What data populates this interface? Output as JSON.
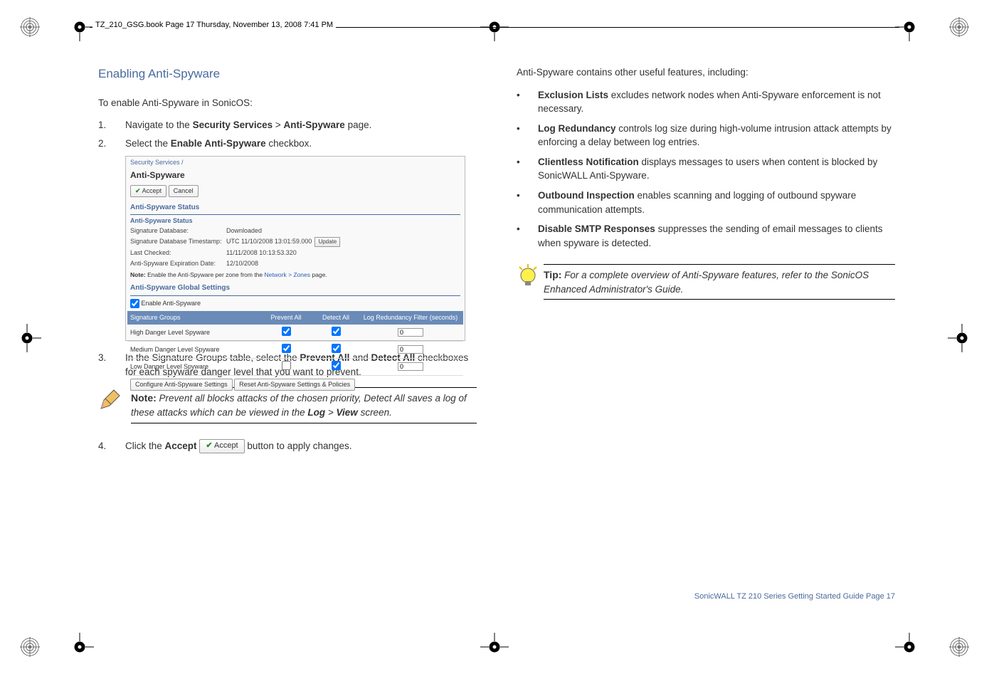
{
  "header": "TZ_210_GSG.book  Page 17  Thursday, November 13, 2008  7:41 PM",
  "left": {
    "title": "Enabling Anti-Spyware",
    "intro": "To enable Anti-Spyware in SonicOS:",
    "step1_pre": "Navigate to the ",
    "step1_b1": "Security Services",
    "step1_gt": " > ",
    "step1_b2": "Anti-Spyware",
    "step1_post": " page.",
    "step2_pre": "Select the ",
    "step2_b": "Enable Anti-Spyware",
    "step2_post": " checkbox.",
    "step3_pre": "In the Signature Groups table, select the ",
    "step3_b1": "Prevent All",
    "step3_mid": " and ",
    "step3_b2": "Detect All",
    "step3_post": " checkboxes for each spyware danger level that you want to prevent.",
    "note_label": "Note:",
    "note_text_pre": "Prevent all blocks attacks of the chosen priority, Detect All saves a log of these attacks which can be viewed in the ",
    "note_b1": "Log",
    "note_gt": " > ",
    "note_b2": "View",
    "note_text_post": " screen.",
    "step4_pre": "Click the ",
    "step4_b": "Accept",
    "step4_btn": "Accept",
    "step4_post": " button to apply changes."
  },
  "screenshot": {
    "breadcrumb": "Security Services /",
    "title": "Anti-Spyware",
    "accept": "Accept",
    "cancel": "Cancel",
    "section_status": "Anti-Spyware Status",
    "sub_status": "Anti-Spyware Status",
    "rows": [
      {
        "lbl": "Signature Database:",
        "val": "Downloaded"
      },
      {
        "lbl": "Signature Database Timestamp:",
        "val": "UTC 11/10/2008 13:01:59.000",
        "btn": "Update"
      },
      {
        "lbl": "Last Checked:",
        "val": "11/11/2008 10:13:53.320"
      },
      {
        "lbl": "Anti-Spyware Expiration Date:",
        "val": "12/10/2008"
      }
    ],
    "note_pre": "Note: ",
    "note_txt": "Enable the Anti-Spyware per zone from the ",
    "note_link": "Network > Zones",
    "note_post": " page.",
    "section_global": "Anti-Spyware Global Settings",
    "enable_chk": "Enable Anti-Spyware",
    "tbl": {
      "h1": "Signature Groups",
      "h2": "Prevent All",
      "h3": "Detect All",
      "h4": "Log Redundancy Filter (seconds)"
    },
    "trows": [
      {
        "name": "High Danger Level Spyware",
        "p": true,
        "d": true,
        "v": "0"
      },
      {
        "name": "Medium Danger Level Spyware",
        "p": true,
        "d": true,
        "v": "0"
      },
      {
        "name": "Low Danger Level Spyware",
        "p": false,
        "d": true,
        "v": "0"
      }
    ],
    "btn_cfg": "Configure Anti-Spyware Settings",
    "btn_reset": "Reset Anti-Spyware Settings & Policies"
  },
  "right": {
    "intro": "Anti-Spyware contains other useful features, including:",
    "bullets": [
      {
        "b": "Exclusion Lists",
        "t": " excludes network nodes when Anti-Spyware enforcement is not necessary."
      },
      {
        "b": "Log Redundancy",
        "t": " controls log size during high-volume intrusion attack attempts by enforcing a delay between log entries."
      },
      {
        "b": "Clientless Notification",
        "t": " displays messages to users when content is blocked by SonicWALL Anti-Spyware."
      },
      {
        "b": "Outbound Inspection",
        "t": " enables scanning and logging of outbound spyware communication attempts."
      },
      {
        "b": "Disable SMTP Responses",
        "t": " suppresses the sending of email messages to clients when spyware is detected."
      }
    ],
    "tip_label": "Tip:",
    "tip_text": "For a complete overview of Anti-Spyware features, refer to the SonicOS Enhanced Administrator's Guide."
  },
  "footer": "SonicWALL TZ 210 Series Getting Started Guide  Page 17",
  "colors": {
    "heading": "#4a6a9c",
    "text": "#333333",
    "link": "#2a60b8"
  }
}
